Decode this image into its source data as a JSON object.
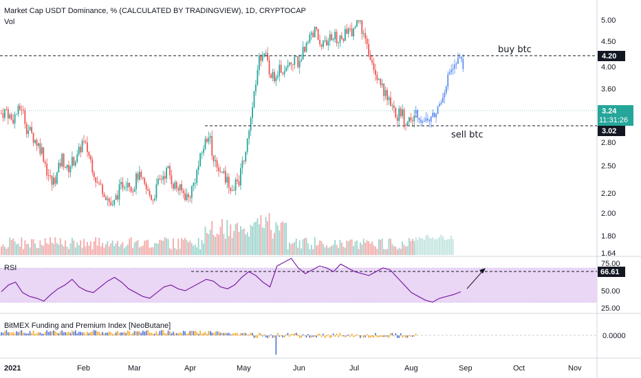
{
  "chart_data": {
    "type": "candlestick",
    "title": "Market Cap USDT Dominance, % (CALCULATED BY TRADINGVIEW), 1D, CRYPTOCAP",
    "volume_label": "Vol",
    "y_ticks": [
      "5.00",
      "4.50",
      "4.00",
      "3.60",
      "2.80",
      "2.50",
      "2.20",
      "2.00",
      "1.80",
      "1.64"
    ],
    "x_ticks": [
      "2021",
      "Feb",
      "Mar",
      "Apr",
      "May",
      "Jun",
      "Jul",
      "Aug",
      "Sep",
      "Oct",
      "Nov"
    ],
    "price_labels": {
      "resistance": "4.20",
      "current": "3.24",
      "countdown": "11:31:26",
      "support": "3.02"
    },
    "annotations": {
      "buy": "buy btc",
      "sell": "sell btc"
    },
    "colors": {
      "up": "#26a69a",
      "down": "#ef5350",
      "projection": "#5b8def",
      "rsi": "#7b1fa2",
      "rsi_band": "#ead6f5"
    },
    "close_path": [
      [
        0,
        3.2
      ],
      [
        3,
        3.25
      ],
      [
        6,
        3.1
      ],
      [
        9,
        3.2
      ],
      [
        12,
        3.3
      ],
      [
        15,
        3.0
      ],
      [
        18,
        2.9
      ],
      [
        21,
        2.8
      ],
      [
        24,
        2.7
      ],
      [
        27,
        2.45
      ],
      [
        30,
        2.3
      ],
      [
        33,
        2.4
      ],
      [
        36,
        2.6
      ],
      [
        39,
        2.45
      ],
      [
        42,
        2.55
      ],
      [
        45,
        2.6
      ],
      [
        48,
        2.8
      ],
      [
        51,
        2.7
      ],
      [
        54,
        2.5
      ],
      [
        57,
        2.3
      ],
      [
        60,
        2.25
      ],
      [
        63,
        2.15
      ],
      [
        66,
        2.05
      ],
      [
        69,
        2.2
      ],
      [
        72,
        2.3
      ],
      [
        75,
        2.35
      ],
      [
        78,
        2.25
      ],
      [
        81,
        2.4
      ],
      [
        84,
        2.3
      ],
      [
        87,
        2.2
      ],
      [
        90,
        2.15
      ],
      [
        93,
        2.3
      ],
      [
        96,
        2.4
      ],
      [
        99,
        2.45
      ],
      [
        102,
        2.3
      ],
      [
        105,
        2.25
      ],
      [
        108,
        2.2
      ],
      [
        111,
        2.15
      ],
      [
        114,
        2.3
      ],
      [
        117,
        2.5
      ],
      [
        120,
        2.75
      ],
      [
        123,
        2.9
      ],
      [
        126,
        2.6
      ],
      [
        129,
        2.5
      ],
      [
        132,
        2.4
      ],
      [
        135,
        2.3
      ],
      [
        138,
        2.25
      ],
      [
        141,
        2.35
      ],
      [
        144,
        2.6
      ],
      [
        147,
        2.9
      ],
      [
        150,
        3.5
      ],
      [
        153,
        4.2
      ],
      [
        156,
        4.3
      ],
      [
        159,
        3.9
      ],
      [
        162,
        3.85
      ],
      [
        165,
        4.0
      ],
      [
        168,
        3.9
      ],
      [
        171,
        4.05
      ],
      [
        174,
        4.2
      ],
      [
        177,
        4.0
      ],
      [
        180,
        4.4
      ],
      [
        183,
        4.6
      ],
      [
        186,
        4.75
      ],
      [
        189,
        4.5
      ],
      [
        192,
        4.4
      ],
      [
        195,
        4.55
      ],
      [
        198,
        4.6
      ],
      [
        201,
        4.5
      ],
      [
        204,
        4.65
      ],
      [
        207,
        4.7
      ],
      [
        210,
        4.85
      ],
      [
        213,
        4.9
      ],
      [
        216,
        4.5
      ],
      [
        219,
        4.2
      ],
      [
        222,
        3.95
      ],
      [
        225,
        3.7
      ],
      [
        228,
        3.5
      ],
      [
        231,
        3.3
      ],
      [
        234,
        3.15
      ],
      [
        237,
        3.2
      ],
      [
        240,
        3.1
      ],
      [
        243,
        3.05
      ],
      [
        246,
        3.2
      ]
    ],
    "projection_path": [
      [
        246,
        3.2
      ],
      [
        250,
        3.1
      ],
      [
        254,
        3.1
      ],
      [
        258,
        3.2
      ],
      [
        262,
        3.5
      ],
      [
        266,
        3.9
      ],
      [
        270,
        4.0
      ],
      [
        272,
        4.2
      ],
      [
        274,
        3.9
      ]
    ],
    "rsi": {
      "label": "RSI",
      "ticks": [
        "75.00",
        "50.00",
        "25.00"
      ],
      "current": "66.61",
      "band": [
        30,
        70
      ],
      "values": [
        45,
        52,
        55,
        44,
        40,
        38,
        35,
        42,
        48,
        52,
        58,
        50,
        46,
        44,
        50,
        56,
        60,
        55,
        48,
        44,
        40,
        38,
        44,
        50,
        52,
        48,
        46,
        50,
        54,
        58,
        56,
        50,
        48,
        52,
        60,
        66,
        62,
        55,
        50,
        72,
        76,
        80,
        70,
        64,
        68,
        72,
        70,
        66,
        74,
        70,
        66,
        64,
        62,
        66,
        70,
        68,
        60,
        52,
        44,
        40,
        36,
        34,
        38,
        40,
        42,
        45
      ]
    },
    "funding": {
      "label": "BitMEX Funding and Premium Index [NeoButane]",
      "tick": "0.0000"
    }
  }
}
